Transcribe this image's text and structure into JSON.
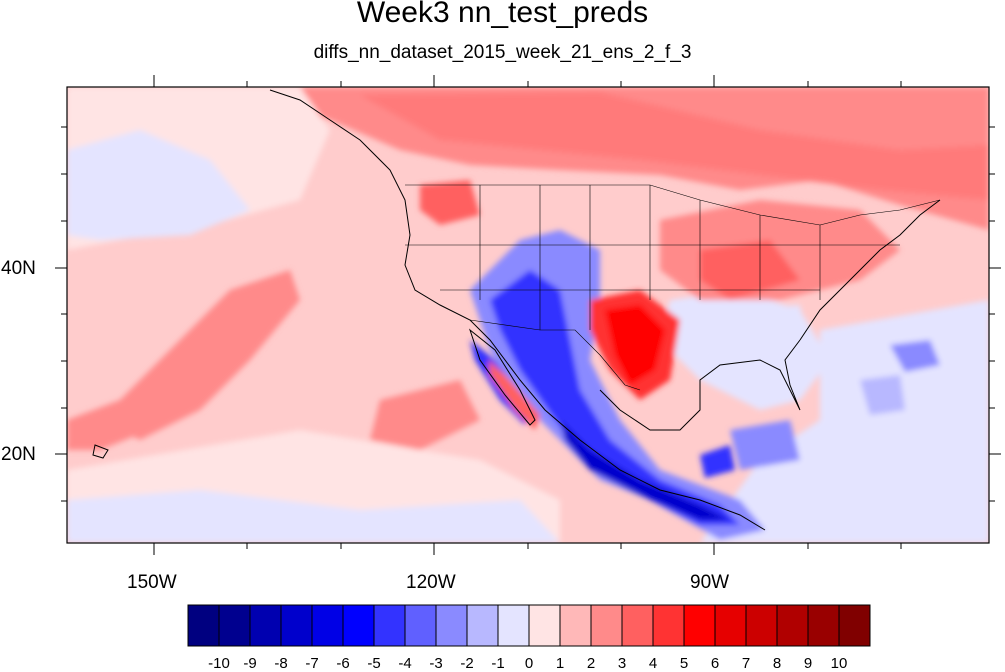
{
  "title": "Week3 nn_test_preds",
  "subtitle": "diffs_nn_dataset_2015_week_21_ens_2_f_3",
  "lat_labels": [
    "40N",
    "20N"
  ],
  "lon_labels": [
    "150W",
    "120W",
    "90W"
  ],
  "colorbar": {
    "labels": [
      "-10",
      "-9",
      "-8",
      "-7",
      "-6",
      "-5",
      "-4",
      "-3",
      "-2",
      "-1",
      "0",
      "1",
      "2",
      "3",
      "4",
      "5",
      "6",
      "7",
      "8",
      "9",
      "10"
    ],
    "colors": [
      "#000080",
      "#00008f",
      "#0000b0",
      "#0000cc",
      "#0000e6",
      "#0000ff",
      "#3333ff",
      "#6060ff",
      "#8a8aff",
      "#b8b8ff",
      "#e4e4ff",
      "#ffe4e4",
      "#ffb8b8",
      "#ff8a8a",
      "#ff6060",
      "#ff3333",
      "#ff0000",
      "#e60000",
      "#cc0000",
      "#b00000",
      "#990000",
      "#800000"
    ]
  },
  "map": {
    "extent": {
      "lon_min": -159.4,
      "lon_max": -60.5,
      "lat_min": 10.4,
      "lat_max": 59.4
    },
    "background_color": "#ffcccc"
  }
}
